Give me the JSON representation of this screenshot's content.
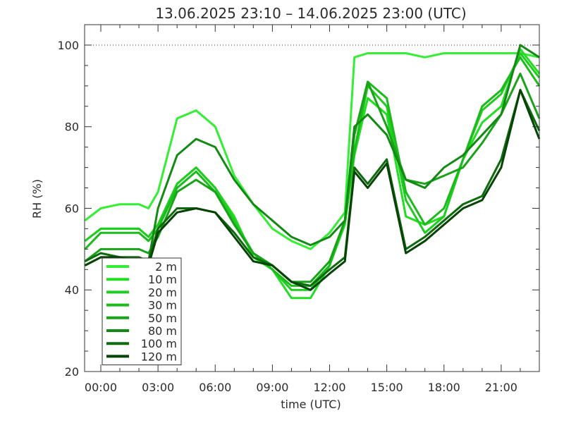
{
  "chart_data": {
    "type": "line",
    "title": "13.06.2025  23:10  –  14.06.2025  23:00  (UTC)",
    "xlabel": "time  (UTC)",
    "ylabel": "RH  (%)",
    "x_unit": "hours after 00:00 UTC on 14.06.2025",
    "xlim": [
      -0.85,
      23.0
    ],
    "ylim": [
      20,
      105
    ],
    "x_ticks": [
      0,
      3,
      6,
      9,
      12,
      15,
      18,
      21
    ],
    "x_tick_labels": [
      "00:00",
      "03:00",
      "06:00",
      "09:00",
      "12:00",
      "15:00",
      "18:00",
      "21:00"
    ],
    "y_ticks": [
      20,
      40,
      60,
      80,
      100
    ],
    "y_tick_labels": [
      "20",
      "40",
      "60",
      "80",
      "100"
    ],
    "reference_line": 100,
    "grid": false,
    "legend_position": "bottom-left",
    "x": [
      -0.83,
      0,
      1,
      2,
      2.5,
      3,
      4,
      5,
      6,
      7,
      8,
      9,
      10,
      11,
      12,
      12.8,
      13.3,
      14,
      15,
      16,
      17,
      18,
      19,
      20,
      21,
      22,
      23
    ],
    "series": [
      {
        "name": "2 m",
        "color": "#33ee33",
        "values": [
          57,
          60,
          61,
          61,
          60,
          64,
          82,
          84,
          80,
          68,
          61,
          55,
          52,
          50,
          54,
          59,
          97,
          98,
          98,
          98,
          97,
          98,
          98,
          98,
          98,
          98,
          97
        ]
      },
      {
        "name": "10 m",
        "color": "#22dd22",
        "values": [
          52,
          55,
          55,
          55,
          53,
          56,
          66,
          70,
          65,
          58,
          48,
          45,
          38,
          38,
          46,
          56,
          73,
          87,
          83,
          58,
          56,
          58,
          72,
          81,
          85,
          99,
          93
        ]
      },
      {
        "name": "20 m",
        "color": "#1fcc1f",
        "values": [
          52,
          55,
          55,
          55,
          53,
          56,
          66,
          70,
          65,
          57,
          49,
          45,
          40,
          40,
          46,
          57,
          74,
          90,
          85,
          62,
          54,
          58,
          72,
          84,
          88,
          98,
          92
        ]
      },
      {
        "name": "30 m",
        "color": "#1cbb1c",
        "values": [
          50,
          54,
          54,
          54,
          52,
          55,
          65,
          69,
          64,
          56,
          49,
          45,
          41,
          41,
          46,
          57,
          74,
          91,
          87,
          64,
          56,
          60,
          72,
          85,
          89,
          97,
          90
        ]
      },
      {
        "name": "50 m",
        "color": "#18a318",
        "values": [
          47,
          50,
          50,
          50,
          49,
          53,
          64,
          67,
          64,
          56,
          49,
          46,
          42,
          42,
          47,
          57,
          78,
          91,
          80,
          67,
          66,
          68,
          70,
          76,
          83,
          93,
          82
        ]
      },
      {
        "name": "80 m",
        "color": "#138a13",
        "values": [
          46,
          48,
          48,
          48,
          47,
          60,
          73,
          77,
          75,
          67,
          61,
          57,
          53,
          51,
          53,
          57,
          80,
          83,
          78,
          67,
          65,
          70,
          73,
          78,
          83,
          100,
          97
        ]
      },
      {
        "name": "100 m",
        "color": "#0d6a0d",
        "values": [
          47,
          49,
          48,
          48,
          47,
          55,
          60,
          60,
          59,
          54,
          48,
          46,
          42,
          41,
          45,
          48,
          70,
          66,
          72,
          50,
          53,
          57,
          61,
          63,
          72,
          89,
          79
        ]
      },
      {
        "name": "120 m",
        "color": "#064406",
        "values": [
          46,
          48,
          48,
          47,
          46,
          54,
          59,
          60,
          59,
          53,
          47,
          46,
          42,
          40,
          44,
          47,
          69,
          65,
          71,
          49,
          52,
          56,
          60,
          62,
          70,
          89,
          77
        ]
      }
    ]
  }
}
